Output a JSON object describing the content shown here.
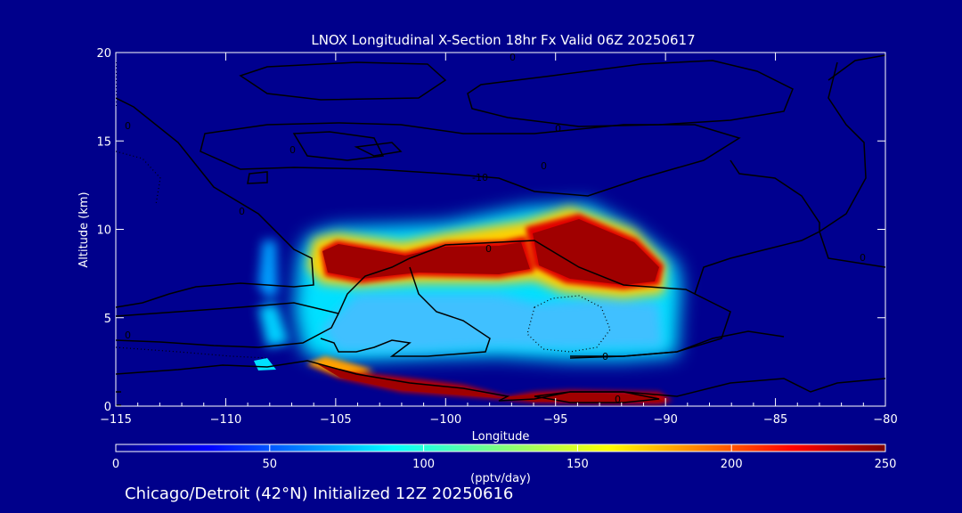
{
  "chart_data": {
    "type": "heatmap",
    "title": "LNOX Longitudinal X-Section 18hr  Fx Valid 06Z 20250617",
    "xlabel": "Longitude",
    "ylabel": "Altitude (km)",
    "xlim": [
      -115,
      -80
    ],
    "ylim": [
      0,
      20
    ],
    "x_ticks": [
      -115,
      -110,
      -105,
      -100,
      -95,
      -90,
      -85,
      -80
    ],
    "x_tick_labels": [
      "−115",
      "−110",
      "−105",
      "−100",
      "−95",
      "−90",
      "−85",
      "−80"
    ],
    "y_ticks": [
      0,
      5,
      10,
      15,
      20
    ],
    "y_tick_labels": [
      "0",
      "5",
      "10",
      "15",
      "20"
    ],
    "colorbar": {
      "label": "(pptv/day)",
      "min": 0,
      "max": 250,
      "ticks": [
        0,
        50,
        100,
        150,
        200,
        250
      ],
      "tick_labels": [
        "0",
        "50",
        "100",
        "150",
        "200",
        "250"
      ],
      "colormap": "jet"
    },
    "contour_labels": [
      "0",
      "0",
      "0",
      "0",
      "0",
      "0",
      "-10",
      "0",
      "0",
      "0",
      "0",
      "0"
    ],
    "footer": "Chicago/Detroit (42°N) Initialized 12Z 20250616"
  }
}
